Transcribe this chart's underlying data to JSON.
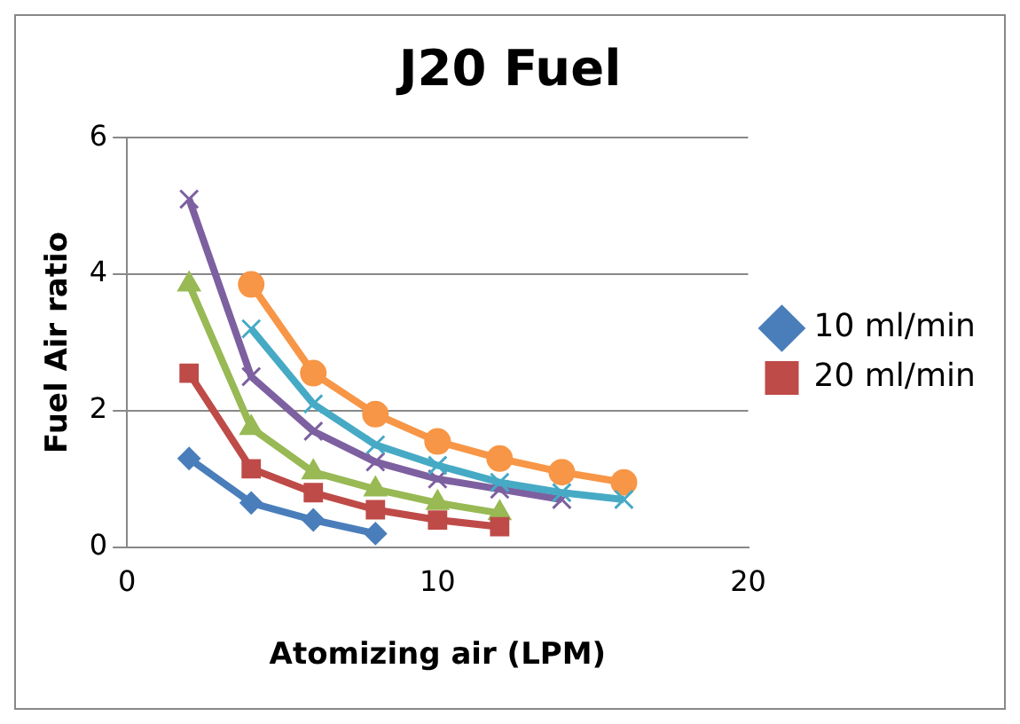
{
  "chart_data": {
    "type": "line",
    "title": "J20 Fuel",
    "xlabel": "Atomizing air (LPM)",
    "ylabel": "Fuel Air ratio",
    "xlim": [
      0,
      20
    ],
    "xticks": [
      0,
      10,
      20
    ],
    "ylim": [
      0,
      6
    ],
    "yticks": [
      0,
      2,
      4,
      6
    ],
    "grid": "y",
    "legend": "right",
    "series": [
      {
        "name": "10 ml/min",
        "color": "#4a7ebb",
        "marker": "diamond",
        "x": [
          2,
          4,
          6,
          8
        ],
        "values": [
          1.3,
          0.65,
          0.4,
          0.2
        ]
      },
      {
        "name": "20 ml/min",
        "color": "#be4b48",
        "marker": "square",
        "x": [
          2,
          4,
          6,
          8,
          10,
          12
        ],
        "values": [
          2.55,
          1.15,
          0.8,
          0.55,
          0.4,
          0.3
        ]
      },
      {
        "color": "#98b954",
        "marker": "triangle",
        "x": [
          2,
          4,
          6,
          8,
          10,
          12
        ],
        "values": [
          3.85,
          1.75,
          1.1,
          0.85,
          0.65,
          0.5
        ]
      },
      {
        "color": "#46aac5",
        "marker": "cross",
        "x": [
          4,
          6,
          8,
          10,
          12,
          14,
          16
        ],
        "values": [
          3.2,
          2.1,
          1.5,
          1.2,
          0.95,
          0.8,
          0.7
        ]
      },
      {
        "color": "#f79646",
        "marker": "circle",
        "x": [
          4,
          6,
          8,
          10,
          12,
          14,
          16
        ],
        "values": [
          3.85,
          2.55,
          1.95,
          1.55,
          1.3,
          1.1,
          0.95
        ]
      },
      {
        "color": "#7d60a0",
        "marker": "cross",
        "x": [
          2,
          4,
          6,
          8,
          10,
          12,
          14
        ],
        "values": [
          5.1,
          2.5,
          1.7,
          1.25,
          1.0,
          0.85,
          0.7
        ]
      }
    ]
  }
}
